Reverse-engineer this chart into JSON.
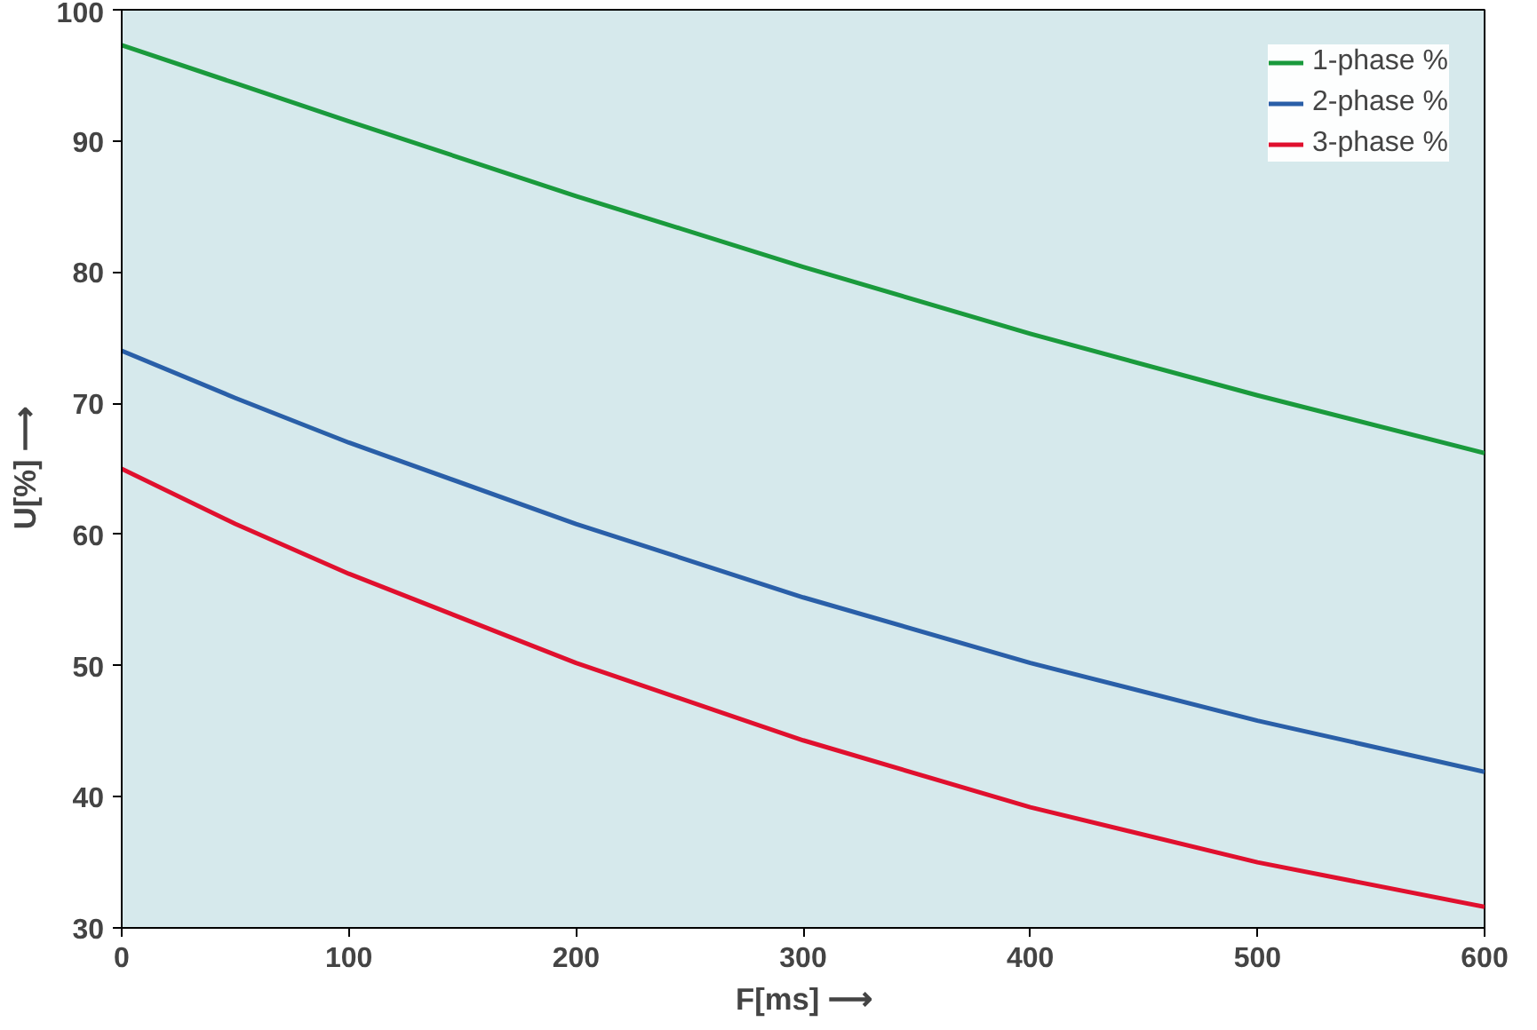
{
  "chart_data": {
    "type": "line",
    "xlabel": "F[ms] ⟶",
    "ylabel": "U[%] ⟶",
    "x": [
      0,
      50,
      100,
      200,
      300,
      400,
      500,
      600
    ],
    "series": [
      {
        "name": "1-phase %",
        "color": "#1a9a3c",
        "values": [
          97.3,
          94.4,
          91.5,
          85.8,
          80.4,
          75.3,
          70.6,
          66.2
        ]
      },
      {
        "name": "2-phase %",
        "color": "#2a5fa8",
        "values": [
          74,
          70.4,
          67,
          60.8,
          55.2,
          50.2,
          45.8,
          41.9
        ]
      },
      {
        "name": "3-phase %",
        "color": "#e0102e",
        "values": [
          65,
          60.8,
          57,
          50.2,
          44.3,
          39.2,
          35,
          31.6
        ]
      }
    ],
    "xlim": [
      0,
      600
    ],
    "ylim": [
      30,
      100
    ],
    "xticks": [
      0,
      100,
      200,
      300,
      400,
      500,
      600
    ],
    "yticks": [
      30,
      40,
      50,
      60,
      70,
      80,
      90,
      100
    ],
    "grid": false,
    "legend": "top right",
    "line_style": "solid"
  }
}
